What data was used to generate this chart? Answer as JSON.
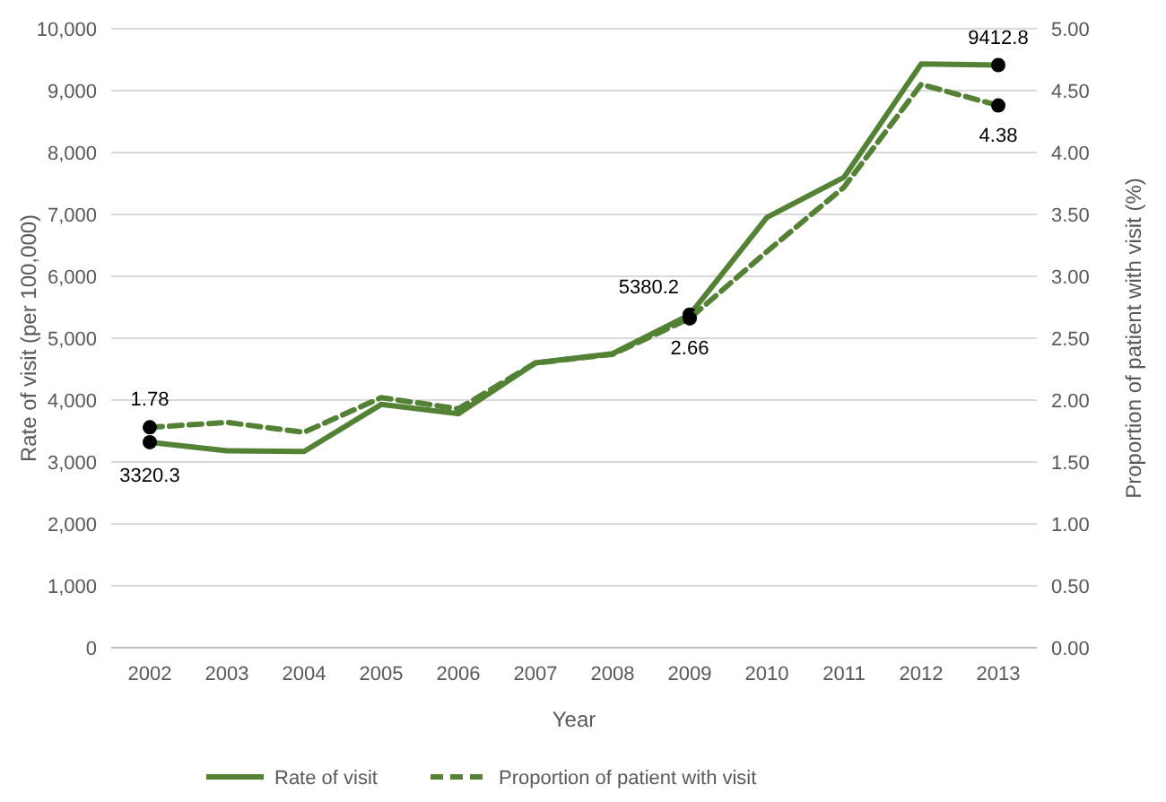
{
  "chart_data": {
    "type": "line",
    "xlabel": "Year",
    "ylabel": "Rate of visit (per 100,000)",
    "y2label": "Proportion of patient with visit (%)",
    "categories": [
      "2002",
      "2003",
      "2004",
      "2005",
      "2006",
      "2007",
      "2008",
      "2009",
      "2010",
      "2011",
      "2012",
      "2013"
    ],
    "series": [
      {
        "name": "Rate of visit",
        "color": "#548235",
        "line_style": "solid",
        "values": [
          3320.3,
          3180,
          3170,
          3930,
          3780,
          4600,
          4750,
          5380.2,
          6950,
          7600,
          9430,
          9412.8
        ],
        "value_labels": [
          "3320.3",
          null,
          null,
          null,
          null,
          null,
          null,
          "5380.2",
          null,
          null,
          null,
          "9412.8"
        ]
      },
      {
        "name": "Proportion of patient with visit",
        "color": "#548235",
        "line_style": "dashed",
        "axis": "y2",
        "values": [
          1.78,
          1.82,
          1.74,
          2.02,
          1.93,
          2.3,
          2.37,
          2.66,
          3.2,
          3.72,
          4.55,
          4.38
        ],
        "value_labels": [
          "1.78",
          null,
          null,
          null,
          null,
          null,
          null,
          "2.66",
          null,
          null,
          null,
          "4.38"
        ]
      }
    ],
    "ylim": [
      0,
      10000
    ],
    "yticks": [
      {
        "value": 0,
        "label": "0"
      },
      {
        "value": 1000,
        "label": "1,000"
      },
      {
        "value": 2000,
        "label": "2,000"
      },
      {
        "value": 3000,
        "label": "3,000"
      },
      {
        "value": 4000,
        "label": "4,000"
      },
      {
        "value": 5000,
        "label": "5,000"
      },
      {
        "value": 6000,
        "label": "6,000"
      },
      {
        "value": 7000,
        "label": "7,000"
      },
      {
        "value": 8000,
        "label": "8,000"
      },
      {
        "value": 9000,
        "label": "9,000"
      },
      {
        "value": 10000,
        "label": "10,000"
      }
    ],
    "y2lim": [
      0,
      5
    ],
    "y2ticks": [
      {
        "value": 0,
        "label": "0.00"
      },
      {
        "value": 0.5,
        "label": "0.50"
      },
      {
        "value": 1,
        "label": "1.00"
      },
      {
        "value": 1.5,
        "label": "1.50"
      },
      {
        "value": 2,
        "label": "2.00"
      },
      {
        "value": 2.5,
        "label": "2.50"
      },
      {
        "value": 3,
        "label": "3.00"
      },
      {
        "value": 3.5,
        "label": "3.50"
      },
      {
        "value": 4,
        "label": "4.00"
      },
      {
        "value": 4.5,
        "label": "4.50"
      },
      {
        "value": 5,
        "label": "5.00"
      }
    ],
    "grid": "y",
    "legend": "bottom",
    "marker": "none"
  }
}
